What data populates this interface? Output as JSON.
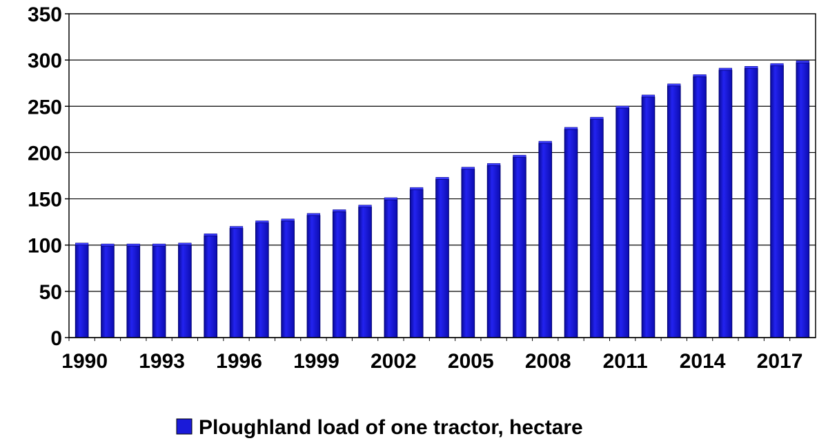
{
  "chart_data": {
    "type": "bar",
    "title": "",
    "xlabel": "",
    "ylabel": "",
    "ylim": [
      0,
      350
    ],
    "yticks": [
      0,
      50,
      100,
      150,
      200,
      250,
      300,
      350
    ],
    "grid": true,
    "legend_position": "bottom",
    "categories": [
      "1990",
      "1991",
      "1992",
      "1993",
      "1994",
      "1995",
      "1996",
      "1997",
      "1998",
      "1999",
      "2000",
      "2001",
      "2002",
      "2003",
      "2004",
      "2005",
      "2006",
      "2007",
      "2008",
      "2009",
      "2010",
      "2011",
      "2012",
      "2013",
      "2014",
      "2015",
      "2016",
      "2017",
      "2018"
    ],
    "xtick_labels": [
      "1990",
      "1993",
      "1996",
      "1999",
      "2002",
      "2005",
      "2008",
      "2011",
      "2014",
      "2017"
    ],
    "series": [
      {
        "name": "Ploughland load of one tractor, hectare",
        "color": "#1a1ad9",
        "values": [
          100,
          99,
          99,
          99,
          100,
          110,
          118,
          124,
          126,
          132,
          136,
          141,
          149,
          160,
          171,
          182,
          186,
          195,
          210,
          225,
          236,
          248,
          260,
          272,
          282,
          289,
          291,
          294,
          297
        ]
      }
    ]
  }
}
